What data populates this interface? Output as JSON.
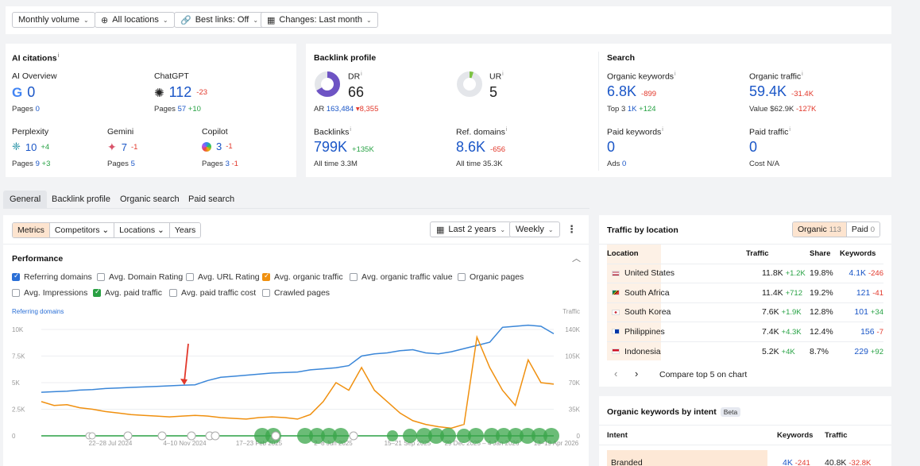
{
  "filters": {
    "volume": "Monthly volume",
    "locations": "All locations",
    "best_links": "Best links: Off",
    "changes": "Changes: Last month"
  },
  "ai_citations": {
    "title": "AI citations",
    "ai_overview": {
      "label": "AI Overview",
      "value": "0",
      "pages_label": "Pages",
      "pages": "0"
    },
    "chatgpt": {
      "label": "ChatGPT",
      "value": "112",
      "delta": "-23",
      "pages_label": "Pages",
      "pages": "57",
      "pages_delta": "+10"
    },
    "perplexity": {
      "label": "Perplexity",
      "value": "10",
      "delta": "+4",
      "pages_label": "Pages",
      "pages": "9",
      "pages_delta": "+3"
    },
    "gemini": {
      "label": "Gemini",
      "value": "7",
      "delta": "-1",
      "pages_label": "Pages",
      "pages": "5"
    },
    "copilot": {
      "label": "Copilot",
      "value": "3",
      "delta": "-1",
      "pages_label": "Pages",
      "pages": "3",
      "pages_delta": "-1"
    }
  },
  "backlink_profile": {
    "title": "Backlink profile",
    "dr": {
      "label": "DR",
      "value": "66",
      "ar_label": "AR",
      "ar": "163,484",
      "ar_delta": "▾8,355"
    },
    "ur": {
      "label": "UR",
      "value": "5"
    },
    "backlinks": {
      "label": "Backlinks",
      "value": "799K",
      "delta": "+135K",
      "all_time_label": "All time",
      "all_time": "3.3M"
    },
    "ref_domains": {
      "label": "Ref. domains",
      "value": "8.6K",
      "delta": "-656",
      "all_time_label": "All time",
      "all_time": "35.3K"
    }
  },
  "search": {
    "title": "Search",
    "organic_keywords": {
      "label": "Organic keywords",
      "value": "6.8K",
      "delta": "-899",
      "top3_label": "Top 3",
      "top3": "1K",
      "top3_delta": "+124"
    },
    "organic_traffic": {
      "label": "Organic traffic",
      "value": "59.4K",
      "delta": "-31.4K",
      "value_label": "Value",
      "value_amount": "$62.9K",
      "value_delta": "-127K"
    },
    "paid_keywords": {
      "label": "Paid keywords",
      "value": "0",
      "ads_label": "Ads",
      "ads": "0"
    },
    "paid_traffic": {
      "label": "Paid traffic",
      "value": "0",
      "cost_label": "Cost",
      "cost": "N/A"
    }
  },
  "tabs": [
    "General",
    "Backlink profile",
    "Organic search",
    "Paid search"
  ],
  "chart_panel": {
    "segments": [
      "Metrics",
      "Competitors",
      "Locations",
      "Years"
    ],
    "range": "Last 2 years",
    "interval": "Weekly",
    "title": "Performance",
    "checkboxes": [
      {
        "label": "Referring domains",
        "checked": true,
        "color": "#2a6fd6"
      },
      {
        "label": "Avg. Domain Rating",
        "checked": false
      },
      {
        "label": "Avg. URL Rating",
        "checked": false
      },
      {
        "label": "Avg. organic traffic",
        "checked": true,
        "color": "#f0900f"
      },
      {
        "label": "Avg. organic traffic value",
        "checked": false
      },
      {
        "label": "Organic pages",
        "checked": false
      },
      {
        "label": "Avg. Impressions",
        "checked": false
      },
      {
        "label": "Avg. paid traffic",
        "checked": true,
        "color": "#2aa043"
      },
      {
        "label": "Avg. paid traffic cost",
        "checked": false
      },
      {
        "label": "Crawled pages",
        "checked": false
      }
    ]
  },
  "chart_data": {
    "type": "line",
    "left_axis_label": "Referring domains",
    "right_axis_label": "Traffic",
    "left_ticks": [
      "0",
      "2.5K",
      "5K",
      "7.5K",
      "10K"
    ],
    "right_ticks": [
      "0",
      "35K",
      "70K",
      "105K",
      "140K"
    ],
    "x_ticks": [
      "22–28 Jul 2024",
      "4–10 Nov 2024",
      "17–23 Feb 2025",
      "2–8 Jun 2025",
      "15–21 Sep 2025",
      "29 Dec 2025 – 4 Jan 2026",
      "13–19 Apr 2026"
    ],
    "left_range": [
      0,
      10000
    ],
    "right_range": [
      0,
      140000
    ],
    "series": [
      {
        "name": "Referring domains",
        "color": "#3a86d8",
        "axis": "left",
        "values": [
          4100,
          4150,
          4200,
          4300,
          4350,
          4450,
          4500,
          4550,
          4600,
          4650,
          4700,
          4750,
          4800,
          5200,
          5500,
          5600,
          5700,
          5800,
          5900,
          5950,
          6000,
          6200,
          6300,
          6400,
          6600,
          7500,
          7700,
          7800,
          8000,
          8100,
          7800,
          7700,
          7900,
          8200,
          8500,
          8800,
          10200,
          10300,
          10400,
          10300,
          9600
        ]
      },
      {
        "name": "Avg. organic traffic",
        "color": "#f0900f",
        "axis": "right",
        "values": [
          45000,
          40000,
          41000,
          37000,
          35000,
          32000,
          30000,
          28000,
          27000,
          26000,
          25000,
          26000,
          27000,
          26000,
          24000,
          23000,
          22000,
          24000,
          25000,
          24000,
          22000,
          28000,
          45000,
          70000,
          60000,
          90000,
          60000,
          45000,
          30000,
          20000,
          15000,
          12000,
          10000,
          15000,
          130000,
          90000,
          60000,
          40000,
          100000,
          70000,
          68000
        ]
      },
      {
        "name": "Avg. paid traffic",
        "color": "#2aa043",
        "axis": "right",
        "values": [
          0,
          0,
          0,
          0,
          0,
          0,
          0,
          0,
          0,
          0,
          0,
          0,
          0,
          0,
          0,
          0,
          0,
          0,
          0,
          0,
          0,
          0,
          0,
          0,
          0,
          0,
          0,
          0,
          0,
          0,
          0,
          0,
          0,
          0,
          0,
          0,
          0,
          0,
          0,
          0,
          0
        ]
      }
    ]
  },
  "traffic_by_location": {
    "title": "Traffic by location",
    "organic_label": "Organic",
    "organic_count": "113",
    "paid_label": "Paid",
    "paid_count": "0",
    "headers": [
      "Location",
      "Traffic",
      "Share",
      "Keywords"
    ],
    "rows": [
      {
        "country": "United States",
        "traffic": "11.8K",
        "traffic_delta": "+1.2K",
        "share": "19.8%",
        "keywords": "4.1K",
        "kw_delta": "-246"
      },
      {
        "country": "South Africa",
        "traffic": "11.4K",
        "traffic_delta": "+712",
        "share": "19.2%",
        "keywords": "121",
        "kw_delta": "-41"
      },
      {
        "country": "South Korea",
        "traffic": "7.6K",
        "traffic_delta": "+1.9K",
        "share": "12.8%",
        "keywords": "101",
        "kw_delta": "+34"
      },
      {
        "country": "Philippines",
        "traffic": "7.4K",
        "traffic_delta": "+4.3K",
        "share": "12.4%",
        "keywords": "156",
        "kw_delta": "-7"
      },
      {
        "country": "Indonesia",
        "traffic": "5.2K",
        "traffic_delta": "+4K",
        "share": "8.7%",
        "keywords": "229",
        "kw_delta": "+92"
      }
    ],
    "compare_label": "Compare top 5 on chart"
  },
  "intent_panel": {
    "title": "Organic keywords by intent",
    "badge": "Beta",
    "headers": [
      "Intent",
      "Keywords",
      "Traffic"
    ],
    "row": {
      "intent": "Branded",
      "keywords": "4K",
      "kw_delta": "-241",
      "traffic": "40.8K",
      "traffic_delta": "-32.8K"
    }
  }
}
